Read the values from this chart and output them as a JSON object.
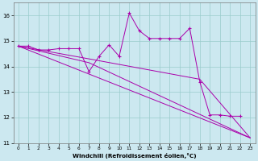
{
  "x": [
    0,
    1,
    2,
    3,
    4,
    5,
    6,
    7,
    8,
    9,
    10,
    11,
    12,
    13,
    14,
    15,
    16,
    17,
    18,
    19,
    20,
    21,
    22,
    23
  ],
  "series_x": [
    0,
    1,
    2,
    3,
    4,
    5,
    6,
    7,
    8,
    9,
    10,
    11,
    12,
    13,
    14,
    15,
    16,
    17,
    18,
    19,
    20,
    21,
    22
  ],
  "series_y": [
    14.8,
    14.8,
    14.65,
    14.65,
    14.7,
    14.7,
    14.7,
    13.8,
    14.4,
    14.85,
    14.4,
    16.1,
    15.4,
    15.1,
    15.1,
    15.1,
    15.1,
    15.5,
    13.4,
    12.1,
    12.1,
    12.05,
    12.05
  ],
  "line1_x": [
    0,
    23
  ],
  "line1_y": [
    14.8,
    11.2
  ],
  "line2_x": [
    0,
    7,
    23
  ],
  "line2_y": [
    14.8,
    14.15,
    11.2
  ],
  "line3_x": [
    0,
    7,
    18,
    23
  ],
  "line3_y": [
    14.8,
    14.3,
    13.5,
    11.2
  ],
  "bg_color": "#cce8f0",
  "line_color": "#aa00aa",
  "grid_color": "#99cccc",
  "xlabel": "Windchill (Refroidissement éolien,°C)",
  "ylim": [
    11,
    16.5
  ],
  "xlim": [
    -0.5,
    23.5
  ],
  "yticks": [
    11,
    12,
    13,
    14,
    15,
    16
  ],
  "xticks": [
    0,
    1,
    2,
    3,
    4,
    5,
    6,
    7,
    8,
    9,
    10,
    11,
    12,
    13,
    14,
    15,
    16,
    17,
    18,
    19,
    20,
    21,
    22,
    23
  ]
}
